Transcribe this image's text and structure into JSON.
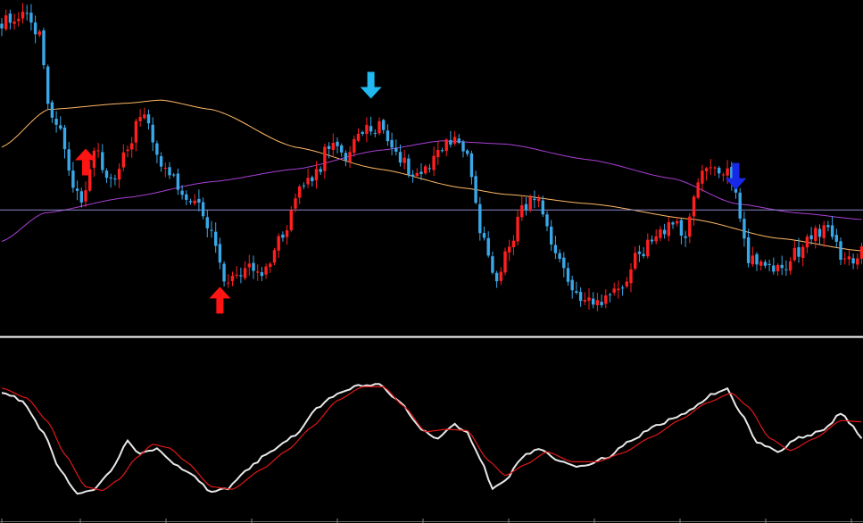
{
  "colors": {
    "background": "#000000",
    "bull": "#ff1f1f",
    "bear": "#3aa8e8",
    "ma_fast": "#ffb866",
    "ma_slow": "#a93fd4",
    "hline": "#8a88c8",
    "separator": "#ffffff",
    "osc_main": "#e8e8e8",
    "osc_signal": "#e01818",
    "buy_arrow": "#ff1414",
    "sell_arrow_1": "#22b8f0",
    "sell_arrow_2": "#1828e8"
  },
  "chart_data": [
    {
      "type": "candlestick",
      "panel": "price",
      "title": "",
      "xlabel": "",
      "ylabel": "",
      "ylim": [
        0,
        100
      ],
      "grid": false,
      "close_anchors": [
        [
          0,
          96
        ],
        [
          5,
          98
        ],
        [
          9,
          92
        ],
        [
          11,
          70
        ],
        [
          14,
          62
        ],
        [
          17,
          44
        ],
        [
          19,
          39
        ],
        [
          22,
          55
        ],
        [
          26,
          44
        ],
        [
          30,
          57
        ],
        [
          34,
          68
        ],
        [
          36,
          56
        ],
        [
          40,
          48
        ],
        [
          43,
          42
        ],
        [
          46,
          39
        ],
        [
          50,
          28
        ],
        [
          53,
          13
        ],
        [
          58,
          17
        ],
        [
          62,
          16
        ],
        [
          67,
          28
        ],
        [
          71,
          43
        ],
        [
          75,
          47
        ],
        [
          78,
          57
        ],
        [
          82,
          53
        ],
        [
          86,
          61
        ],
        [
          90,
          63
        ],
        [
          93,
          57
        ],
        [
          97,
          49
        ],
        [
          100,
          48
        ],
        [
          104,
          55
        ],
        [
          108,
          59
        ],
        [
          111,
          54
        ],
        [
          114,
          29
        ],
        [
          118,
          13
        ],
        [
          121,
          26
        ],
        [
          125,
          38
        ],
        [
          128,
          38
        ],
        [
          132,
          20
        ],
        [
          136,
          12
        ],
        [
          140,
          6
        ],
        [
          144,
          8
        ],
        [
          148,
          13
        ],
        [
          152,
          22
        ],
        [
          156,
          28
        ],
        [
          160,
          32
        ],
        [
          163,
          26
        ],
        [
          166,
          46
        ],
        [
          170,
          50
        ],
        [
          174,
          47
        ],
        [
          178,
          21
        ],
        [
          182,
          18
        ],
        [
          186,
          17
        ],
        [
          190,
          23
        ],
        [
          194,
          30
        ],
        [
          198,
          28
        ],
        [
          201,
          19
        ],
        [
          205,
          23
        ]
      ],
      "moving_averages": [
        {
          "points": [
            [
              0,
              56
            ],
            [
              11,
              68
            ],
            [
              30,
              70
            ],
            [
              38,
              71
            ],
            [
              50,
              68
            ],
            [
              70,
              56
            ],
            [
              90,
              49
            ],
            [
              110,
              43
            ],
            [
              120,
              41
            ],
            [
              140,
              38
            ],
            [
              165,
              33
            ],
            [
              185,
              27
            ],
            [
              205,
              23
            ]
          ]
        },
        {
          "points": [
            [
              0,
              26
            ],
            [
              10,
              35
            ],
            [
              30,
              40
            ],
            [
              50,
              45
            ],
            [
              70,
              49
            ],
            [
              90,
              55
            ],
            [
              105,
              58
            ],
            [
              120,
              57
            ],
            [
              140,
              52
            ],
            [
              160,
              46
            ],
            [
              175,
              38
            ],
            [
              190,
              35
            ],
            [
              205,
              33
            ]
          ]
        }
      ],
      "horizontal_line": 36,
      "signals": [
        {
          "dir": "buy",
          "bar": 20,
          "level": 51
        },
        {
          "dir": "buy",
          "bar": 52,
          "level": 7
        },
        {
          "dir": "sell",
          "bar": 88,
          "level": 76
        },
        {
          "dir": "sell",
          "bar": 175,
          "level": 47
        }
      ]
    },
    {
      "type": "line",
      "panel": "oscillator",
      "title": "",
      "xlabel": "",
      "ylabel": "",
      "ylim": [
        0,
        100
      ],
      "grid": false,
      "series": [
        {
          "role": "main",
          "points": [
            [
              0,
              90
            ],
            [
              5,
              83
            ],
            [
              10,
              57
            ],
            [
              14,
              27
            ],
            [
              18,
              8
            ],
            [
              22,
              12
            ],
            [
              26,
              26
            ],
            [
              30,
              50
            ],
            [
              33,
              40
            ],
            [
              37,
              45
            ],
            [
              41,
              33
            ],
            [
              45,
              24
            ],
            [
              50,
              10
            ],
            [
              54,
              13
            ],
            [
              58,
              27
            ],
            [
              64,
              42
            ],
            [
              70,
              55
            ],
            [
              75,
              77
            ],
            [
              80,
              88
            ],
            [
              85,
              95
            ],
            [
              90,
              96
            ],
            [
              95,
              82
            ],
            [
              100,
              60
            ],
            [
              104,
              52
            ],
            [
              108,
              64
            ],
            [
              111,
              57
            ],
            [
              114,
              37
            ],
            [
              117,
              12
            ],
            [
              120,
              18
            ],
            [
              124,
              38
            ],
            [
              128,
              45
            ],
            [
              133,
              34
            ],
            [
              138,
              30
            ],
            [
              144,
              37
            ],
            [
              150,
              51
            ],
            [
              156,
              63
            ],
            [
              163,
              73
            ],
            [
              170,
              89
            ],
            [
              173,
              92
            ],
            [
              176,
              74
            ],
            [
              180,
              50
            ],
            [
              185,
              42
            ],
            [
              190,
              53
            ],
            [
              196,
              59
            ],
            [
              200,
              73
            ],
            [
              203,
              62
            ],
            [
              205,
              53
            ]
          ]
        },
        {
          "role": "signal",
          "points": [
            [
              0,
              93
            ],
            [
              6,
              85
            ],
            [
              11,
              66
            ],
            [
              15,
              40
            ],
            [
              20,
              14
            ],
            [
              24,
              11
            ],
            [
              28,
              20
            ],
            [
              32,
              37
            ],
            [
              36,
              48
            ],
            [
              40,
              45
            ],
            [
              44,
              34
            ],
            [
              50,
              14
            ],
            [
              55,
              12
            ],
            [
              62,
              28
            ],
            [
              68,
              43
            ],
            [
              74,
              62
            ],
            [
              80,
              83
            ],
            [
              86,
              94
            ],
            [
              91,
              94
            ],
            [
              96,
              78
            ],
            [
              101,
              58
            ],
            [
              106,
              60
            ],
            [
              111,
              59
            ],
            [
              116,
              35
            ],
            [
              120,
              23
            ],
            [
              125,
              32
            ],
            [
              130,
              42
            ],
            [
              136,
              34
            ],
            [
              142,
              34
            ],
            [
              148,
              41
            ],
            [
              155,
              54
            ],
            [
              162,
              68
            ],
            [
              168,
              81
            ],
            [
              174,
              89
            ],
            [
              178,
              78
            ],
            [
              183,
              53
            ],
            [
              188,
              43
            ],
            [
              194,
              53
            ],
            [
              200,
              67
            ],
            [
              205,
              66
            ]
          ]
        }
      ]
    }
  ]
}
